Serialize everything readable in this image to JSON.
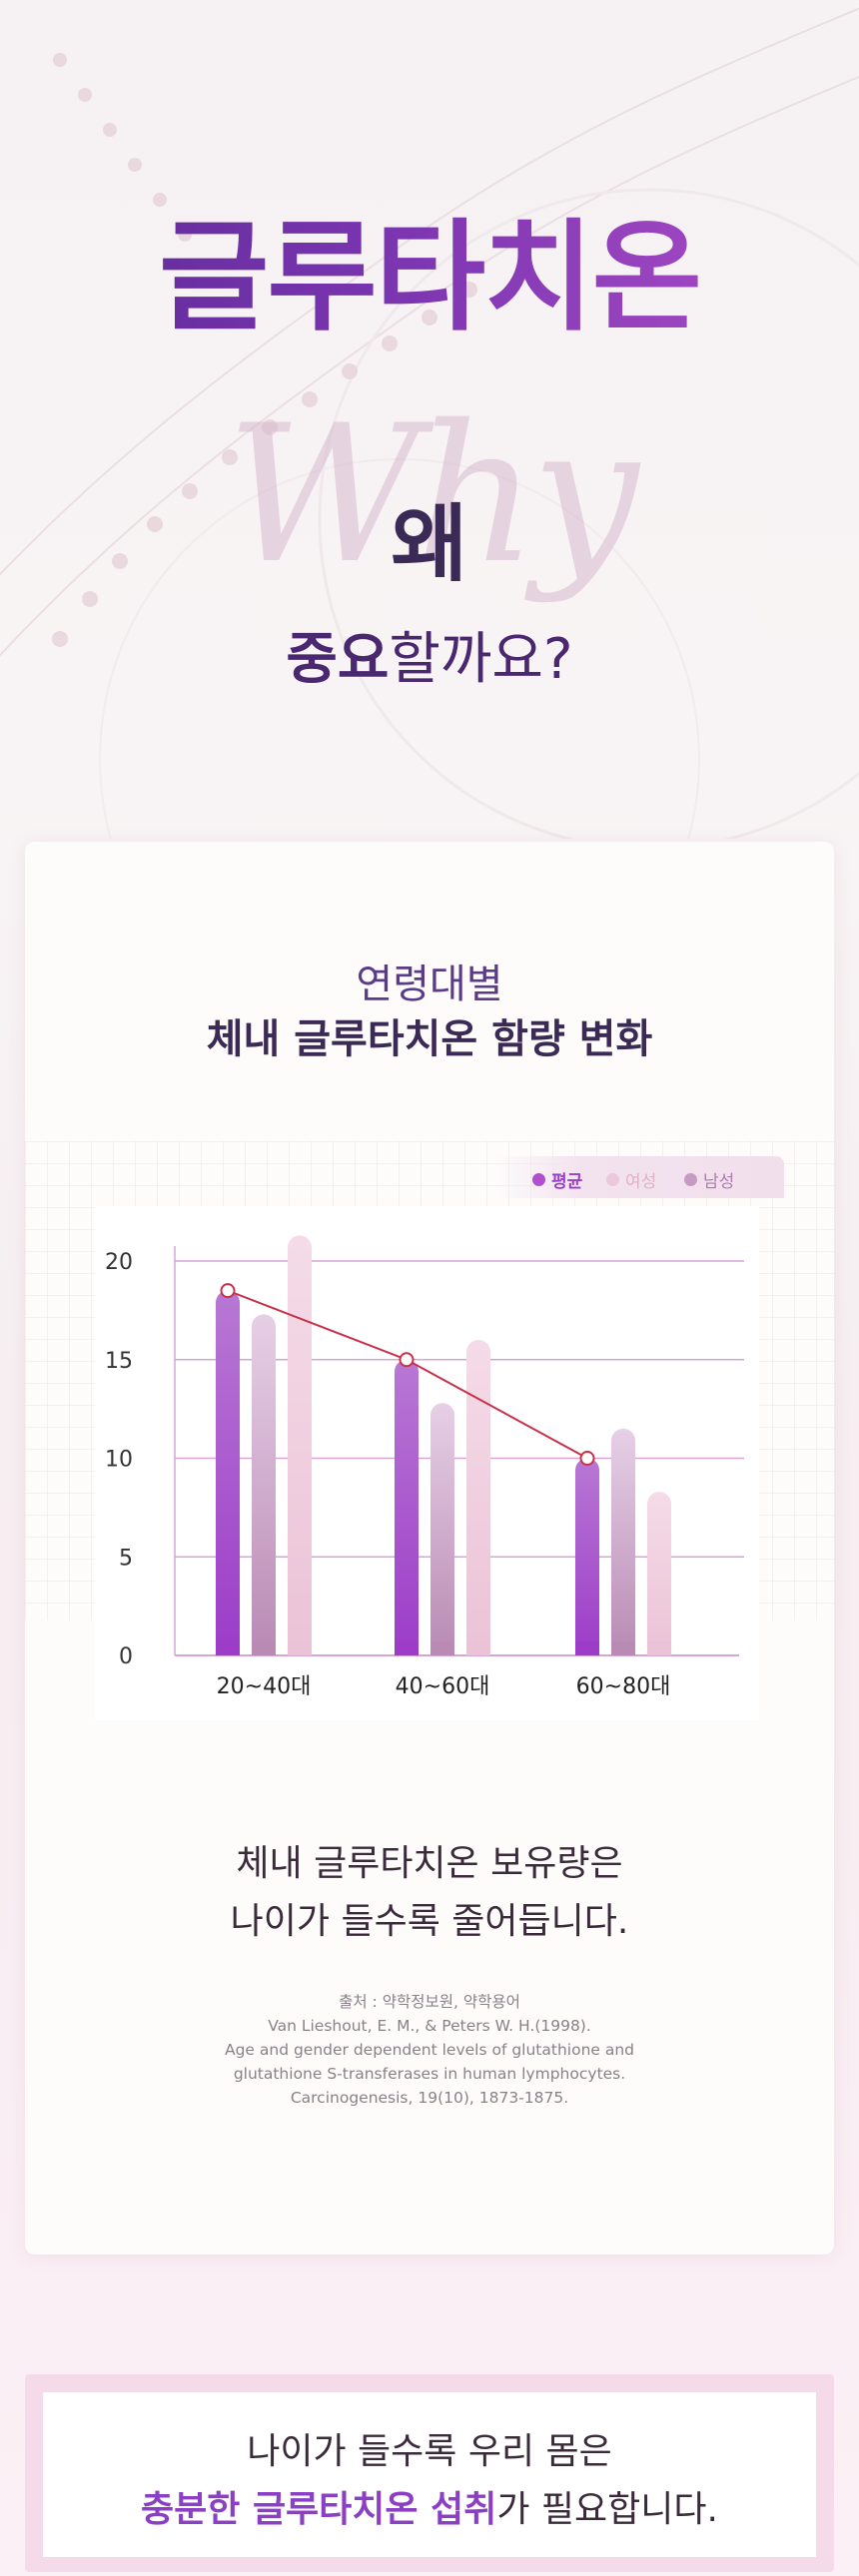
{
  "hero": {
    "title": "글루타치온",
    "why_script": "Why",
    "why_ko": "왜",
    "subtitle_bold": "중요",
    "subtitle_rest": "할까요?"
  },
  "card": {
    "subtitle": "연령대별",
    "title": "체내 글루타치온 함량 변화",
    "description_line1": "체내 글루타치온 보유량은",
    "description_line2": "나이가 들수록 줄어듭니다.",
    "source_lines": [
      "출처 : 약학정보원, 약학용어",
      "Van Lieshout, E. M., & Peters W. H.(1998).",
      "Age and gender dependent levels of glutathione and",
      "glutathione S-transferases in human lymphocytes.",
      "Carcinogenesis, 19(10), 1873-1875."
    ]
  },
  "legend": {
    "items": [
      {
        "label": "평균",
        "color": "#b050d0"
      },
      {
        "label": "여성",
        "color": "#ecc8dc"
      },
      {
        "label": "남성",
        "color": "#c79ac4"
      }
    ]
  },
  "chart_data": {
    "type": "bar",
    "categories": [
      "20~40대",
      "40~60대",
      "60~80대"
    ],
    "series": [
      {
        "name": "평균",
        "values": [
          18.5,
          15.0,
          10.0
        ],
        "color": "#a94fce"
      },
      {
        "name": "남성",
        "values": [
          17.3,
          12.8,
          11.5
        ],
        "color": "#c9a3c9"
      },
      {
        "name": "여성",
        "values": [
          21.3,
          16.0,
          8.3
        ],
        "color": "#f0d2e2"
      }
    ],
    "line": {
      "name": "평균",
      "values": [
        18.5,
        15.0,
        10.0
      ],
      "color": "#c8304a"
    },
    "y_ticks": [
      0,
      5,
      10,
      15,
      20
    ],
    "ylim": [
      0,
      20
    ],
    "grid": true,
    "legend_position": "top-right"
  },
  "bottom": {
    "line1": "나이가 들수록 우리 몸은",
    "line2_highlight": "충분한 글루타치온 섭취",
    "line2_rest": "가 필요합니다."
  }
}
